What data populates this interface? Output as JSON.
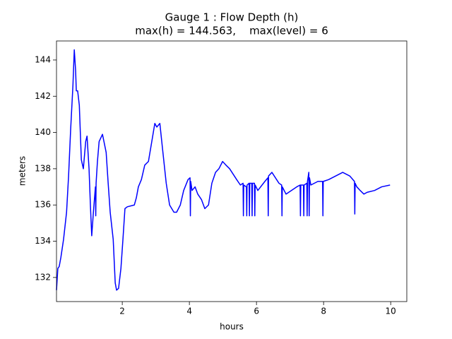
{
  "chart_data": {
    "type": "line",
    "title": "Gauge 1 : Flow Depth (h)",
    "subtitle": "max(h) = 144.563,    max(level) = 6",
    "x_label": "hours",
    "y_label": "meters",
    "color": "#0000ff",
    "x": [
      0.04,
      0.08,
      0.12,
      0.17,
      0.25,
      0.34,
      0.4,
      0.46,
      0.53,
      0.57,
      0.61,
      0.63,
      0.67,
      0.72,
      0.78,
      0.84,
      0.91,
      0.95,
      1.01,
      1.05,
      1.09,
      1.14,
      1.2,
      1.21,
      1.22,
      1.26,
      1.31,
      1.41,
      1.52,
      1.58,
      1.64,
      1.73,
      1.79,
      1.83,
      1.89,
      1.96,
      2.02,
      2.08,
      2.15,
      2.36,
      2.42,
      2.48,
      2.57,
      2.67,
      2.78,
      2.88,
      2.97,
      3.03,
      3.12,
      3.2,
      3.31,
      3.41,
      3.54,
      3.62,
      3.73,
      3.83,
      3.96,
      4.02,
      4.03,
      4.04,
      4.08,
      4.17,
      4.25,
      4.36,
      4.46,
      4.57,
      4.67,
      4.78,
      4.88,
      4.99,
      5.09,
      5.2,
      5.41,
      5.52,
      5.6,
      5.61,
      5.62,
      5.7,
      5.71,
      5.72,
      5.78,
      5.79,
      5.8,
      5.86,
      5.87,
      5.88,
      5.94,
      5.95,
      5.96,
      6.04,
      6.25,
      6.34,
      6.35,
      6.36,
      6.46,
      6.67,
      6.75,
      6.76,
      6.77,
      6.88,
      7.2,
      7.3,
      7.31,
      7.32,
      7.4,
      7.41,
      7.42,
      7.5,
      7.51,
      7.52,
      7.56,
      7.57,
      7.58,
      7.62,
      7.83,
      7.97,
      7.98,
      7.99,
      8.15,
      8.36,
      8.57,
      8.78,
      8.92,
      8.93,
      8.94,
      8.99,
      9.09,
      9.2,
      9.3,
      9.52,
      9.73,
      9.98
    ],
    "values": [
      131.3,
      132.5,
      132.6,
      133.1,
      134.1,
      135.6,
      137.6,
      140.1,
      142.6,
      144.563,
      143.4,
      142.3,
      142.3,
      141.5,
      138.5,
      138.0,
      139.5,
      139.8,
      138,
      136,
      134.3,
      135.6,
      137,
      135.4,
      137.2,
      138.4,
      139.5,
      139.9,
      138.9,
      137.2,
      135.6,
      134.1,
      131.7,
      131.3,
      131.4,
      132.5,
      134.1,
      135.8,
      135.9,
      136,
      136.4,
      137,
      137.4,
      138.2,
      138.4,
      139.5,
      140.5,
      140.3,
      140.5,
      139.1,
      137.2,
      136,
      135.6,
      135.6,
      136,
      136.8,
      137.4,
      137.5,
      135.4,
      137.3,
      136.8,
      137,
      136.6,
      136.3,
      135.8,
      136,
      137.2,
      137.8,
      138,
      138.4,
      138.2,
      138,
      137.4,
      137.1,
      137.2,
      135.4,
      137.1,
      137,
      135.4,
      137.1,
      137.2,
      135.4,
      137.2,
      137.2,
      135.4,
      137.2,
      137.2,
      135.4,
      137.1,
      136.8,
      137.3,
      137.5,
      135.4,
      137.6,
      137.8,
      137.2,
      137.1,
      135.4,
      137,
      136.6,
      137,
      137.1,
      135.4,
      137.1,
      137.1,
      135.4,
      137.1,
      137.2,
      135.4,
      137.3,
      137.8,
      135.4,
      137.5,
      137.1,
      137.3,
      137.3,
      135.4,
      137.3,
      137.4,
      137.6,
      137.8,
      137.6,
      137.3,
      135.5,
      137.2,
      137,
      136.8,
      136.6,
      136.7,
      136.8,
      137,
      137.1
    ],
    "xlim": [
      0.04,
      10.48
    ],
    "ylim": [
      130.67,
      145.05
    ],
    "xticks": [
      2,
      4,
      6,
      8,
      10
    ],
    "yticks": [
      132,
      134,
      136,
      138,
      140,
      142,
      144
    ],
    "grid": false
  }
}
